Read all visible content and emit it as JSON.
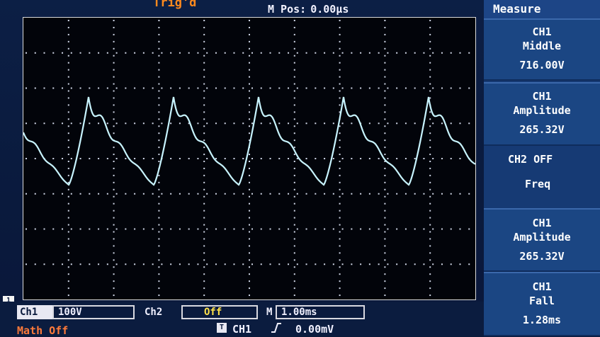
{
  "header": {
    "trigger_status": "Trig'd",
    "mpos_label": "M Pos:",
    "mpos_value": "0.00µs"
  },
  "measure": {
    "title": "Measure",
    "items": [
      {
        "channel": "CH1",
        "name": "Middle",
        "value": "716.00V"
      },
      {
        "channel": "CH1",
        "name": "Amplitude",
        "value": "265.32V"
      },
      {
        "channel": "CH2 OFF",
        "name": "Freq",
        "value": ""
      },
      {
        "channel": "CH1",
        "name": "Amplitude",
        "value": "265.32V"
      },
      {
        "channel": "CH1",
        "name": "Fall",
        "value": "1.28ms"
      }
    ]
  },
  "status": {
    "ch1_label": "Ch1",
    "ch1_scale": "100V",
    "ch2_label": "Ch2",
    "ch2_state": "Off",
    "timebase_label": "M",
    "timebase_value": "1.00ms",
    "math": "Math Off",
    "trigger_source": "CH1",
    "trigger_level": "0.00mV",
    "ch1_marker": "1",
    "trig_src_marker": "T"
  },
  "colors": {
    "trace": "#c8f4ff",
    "background": "#0b1a3a",
    "panel": "#163a74",
    "accent_orange": "#ff8a1e"
  },
  "waveform": {
    "description_key": "ch1-trace",
    "periods": 5
  }
}
